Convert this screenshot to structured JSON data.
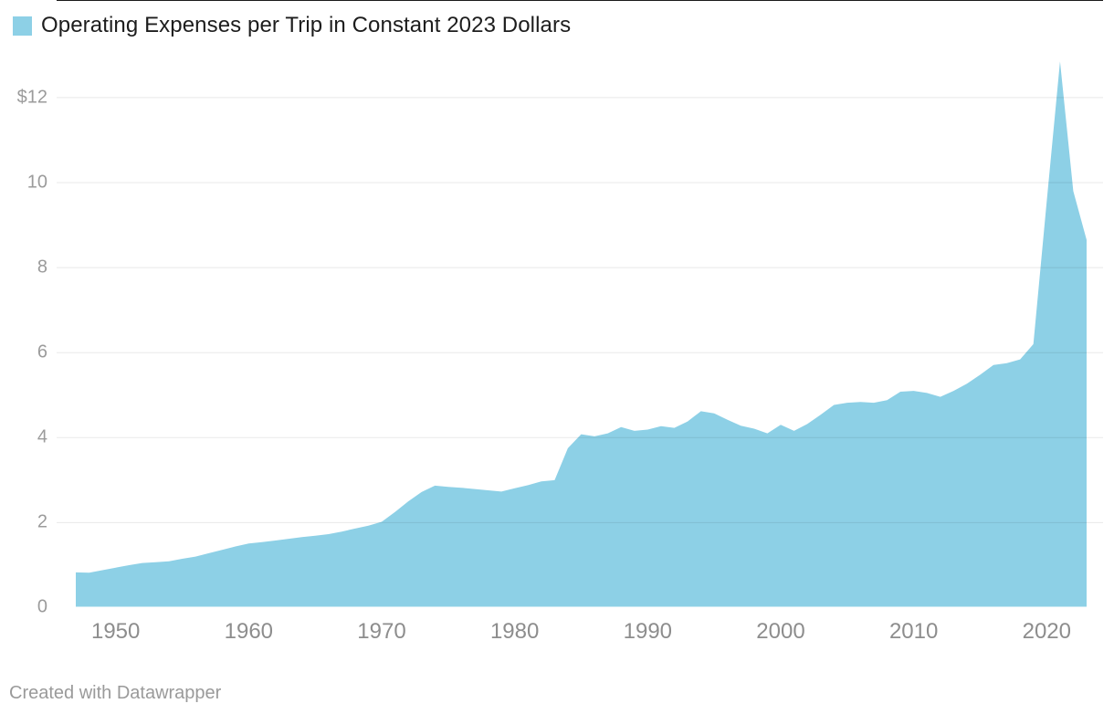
{
  "header": {
    "title": "Operating Expenses per Trip in Constant 2023 Dollars"
  },
  "footer": {
    "credit": "Created with Datawrapper"
  },
  "colors": {
    "area_fill": "#8DD0E6",
    "baseline": "#1a1a1a",
    "gridline": "#e8e8e8",
    "title_text": "#1d1d1d",
    "axis_text": "#9b9b9b"
  },
  "chart_data": {
    "type": "area",
    "title": "Operating Expenses per Trip in Constant 2023 Dollars",
    "series": [
      {
        "name": "Operating Expenses per Trip in Constant 2023 Dollars",
        "values": [
          0.83,
          0.82,
          0.88,
          0.94,
          1.0,
          1.05,
          1.07,
          1.09,
          1.15,
          1.2,
          1.28,
          1.36,
          1.44,
          1.51,
          1.54,
          1.58,
          1.62,
          1.66,
          1.69,
          1.73,
          1.79,
          1.86,
          1.93,
          2.02,
          2.25,
          2.5,
          2.72,
          2.87,
          2.84,
          2.82,
          2.79,
          2.76,
          2.73,
          2.81,
          2.88,
          2.97,
          3.0,
          3.75,
          4.08,
          4.03,
          4.1,
          4.25,
          4.16,
          4.19,
          4.27,
          4.23,
          4.38,
          4.62,
          4.57,
          4.42,
          4.28,
          4.21,
          4.1,
          4.3,
          4.16,
          4.32,
          4.54,
          4.77,
          4.82,
          4.84,
          4.82,
          4.88,
          5.08,
          5.1,
          5.05,
          4.96,
          5.1,
          5.27,
          5.48,
          5.71,
          5.75,
          5.84,
          6.2,
          9.55,
          12.85,
          9.8,
          8.65
        ]
      }
    ],
    "x": [
      1947,
      1948,
      1949,
      1950,
      1951,
      1952,
      1953,
      1954,
      1955,
      1956,
      1957,
      1958,
      1959,
      1960,
      1961,
      1962,
      1963,
      1964,
      1965,
      1966,
      1967,
      1968,
      1969,
      1970,
      1971,
      1972,
      1973,
      1974,
      1975,
      1976,
      1977,
      1978,
      1979,
      1980,
      1981,
      1982,
      1983,
      1984,
      1985,
      1986,
      1987,
      1988,
      1989,
      1990,
      1991,
      1992,
      1993,
      1994,
      1995,
      1996,
      1997,
      1998,
      1999,
      2000,
      2001,
      2002,
      2003,
      2004,
      2005,
      2006,
      2007,
      2008,
      2009,
      2010,
      2011,
      2012,
      2013,
      2014,
      2015,
      2016,
      2017,
      2018,
      2019,
      2020,
      2021,
      2022,
      2023
    ],
    "xlabel": "",
    "ylabel": "",
    "xlim": [
      1947,
      2023
    ],
    "ylim": [
      0,
      13
    ],
    "xticks": {
      "values": [
        1950,
        1960,
        1970,
        1980,
        1990,
        2000,
        2010,
        2020
      ],
      "labels": [
        "1950",
        "1960",
        "1970",
        "1980",
        "1990",
        "2000",
        "2010",
        "2020"
      ]
    },
    "yticks": {
      "values": [
        0,
        2,
        4,
        6,
        8,
        10,
        12
      ],
      "labels": [
        "0",
        "2",
        "4",
        "6",
        "8",
        "10",
        "$12"
      ]
    },
    "grid": "horizontal",
    "legend_position": "top-left",
    "area_color": "#8DD0E6"
  }
}
